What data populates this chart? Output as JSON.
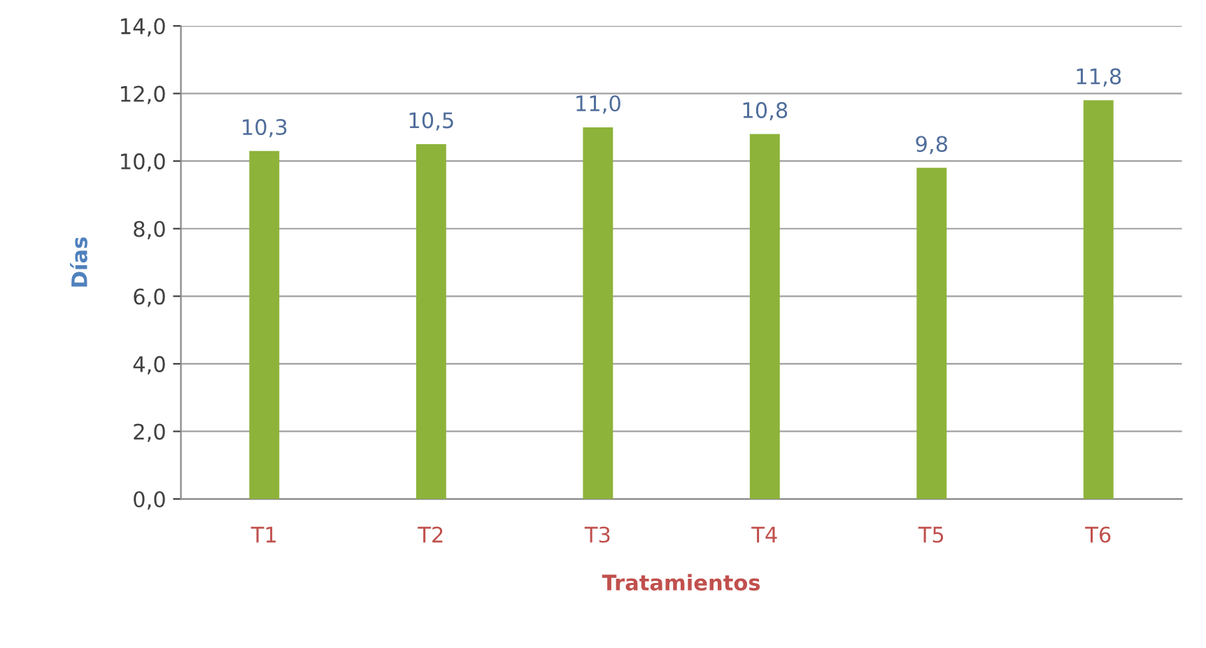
{
  "chart_data": {
    "type": "bar",
    "xlabel": "Tratamientos",
    "ylabel": "Días",
    "categories": [
      "T1",
      "T2",
      "T3",
      "T4",
      "T5",
      "T6"
    ],
    "values": [
      10.3,
      10.5,
      11.0,
      10.8,
      9.8,
      11.8
    ],
    "value_labels": [
      "10,3",
      "10,5",
      "11,0",
      "10,8",
      "9,8",
      "11,8"
    ],
    "color": "#8db33a",
    "ylim": [
      0,
      14
    ],
    "yticks": [
      {
        "value": 0,
        "label": "0,0"
      },
      {
        "value": 2,
        "label": "2,0"
      },
      {
        "value": 4,
        "label": "4,0"
      },
      {
        "value": 6,
        "label": "6,0"
      },
      {
        "value": 8,
        "label": "8,0"
      },
      {
        "value": 10,
        "label": "10,0"
      },
      {
        "value": 12,
        "label": "12,0"
      },
      {
        "value": 14,
        "label": "14,0"
      }
    ],
    "grid": "y",
    "legend": false
  }
}
